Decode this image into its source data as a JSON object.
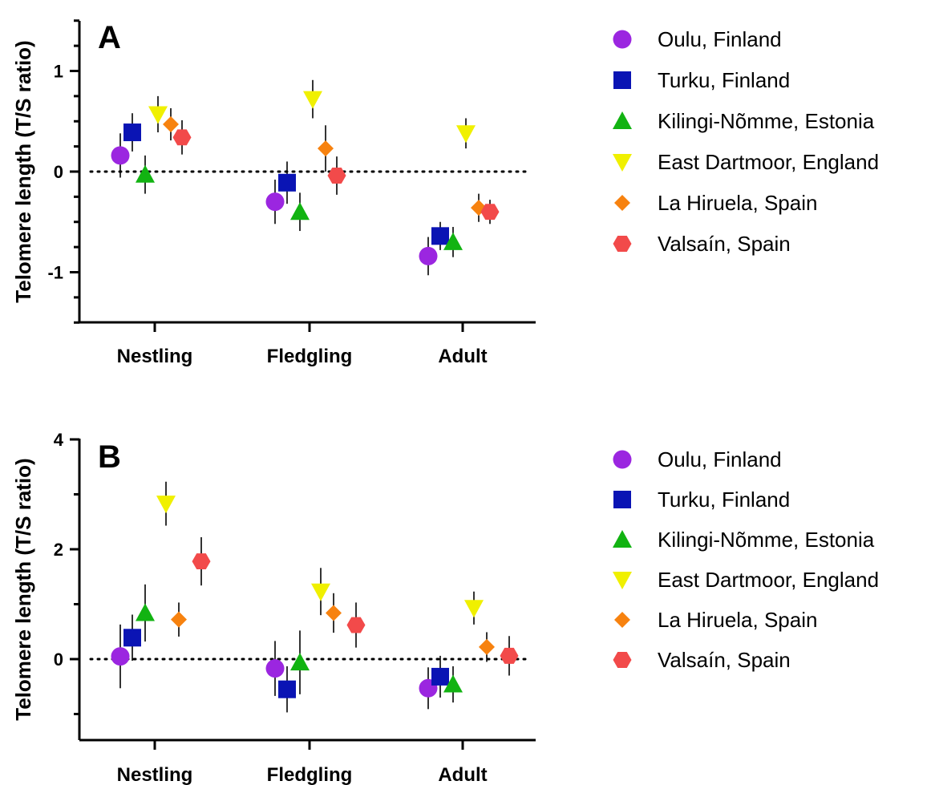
{
  "chart_data": [
    {
      "type": "scatter",
      "panel": "A",
      "ylabel": "Telomere length (T/S ratio)",
      "ylim": [
        -1.5,
        1.5
      ],
      "yticks_major": [
        -1,
        0,
        1
      ],
      "yticks_minor": [
        -1.5,
        -1.25,
        -0.75,
        -0.5,
        -0.25,
        0.25,
        0.5,
        0.75,
        1.25,
        1.5
      ],
      "reference_line": 0,
      "categories": [
        "Nestling",
        "Fledgling",
        "Adult"
      ],
      "series": [
        {
          "name": "Oulu, Finland",
          "color": "#9b26e0",
          "marker": "circle",
          "values": [
            0.16,
            -0.3,
            -0.84
          ],
          "errors": [
            0.22,
            0.22,
            0.19
          ]
        },
        {
          "name": "Turku, Finland",
          "color": "#0a14b4",
          "marker": "square",
          "values": [
            0.39,
            -0.11,
            -0.64
          ],
          "errors": [
            0.19,
            0.21,
            0.14
          ]
        },
        {
          "name": "Kilingi-Nõmme, Estonia",
          "color": "#12b312",
          "marker": "triangle-up",
          "values": [
            -0.03,
            -0.4,
            -0.7
          ],
          "errors": [
            0.19,
            0.19,
            0.15
          ]
        },
        {
          "name": "East Dartmoor, England",
          "color": "#f0f000",
          "marker": "triangle-down",
          "values": [
            0.57,
            0.72,
            0.38
          ],
          "errors": [
            0.18,
            0.19,
            0.15
          ]
        },
        {
          "name": "La Hiruela, Spain",
          "color": "#f7820f",
          "marker": "diamond",
          "values": [
            0.47,
            0.23,
            -0.36
          ],
          "errors": [
            0.16,
            0.23,
            0.14
          ]
        },
        {
          "name": "Valsaín, Spain",
          "color": "#f24a4a",
          "marker": "hexagon",
          "values": [
            0.34,
            -0.04,
            -0.4
          ],
          "errors": [
            0.17,
            0.19,
            0.12
          ]
        }
      ]
    },
    {
      "type": "scatter",
      "panel": "B",
      "ylabel": "Telomere length (T/S ratio)",
      "ylim": [
        -1.5,
        4
      ],
      "yticks_major": [
        0,
        2,
        4
      ],
      "yticks_minor": [
        -1,
        1,
        3
      ],
      "reference_line": 0,
      "categories": [
        "Nestling",
        "Fledgling",
        "Adult"
      ],
      "series": [
        {
          "name": "Oulu, Finland",
          "color": "#9b26e0",
          "marker": "circle",
          "values": [
            0.05,
            -0.17,
            -0.53
          ],
          "errors": [
            0.58,
            0.5,
            0.38
          ]
        },
        {
          "name": "Turku, Finland",
          "color": "#0a14b4",
          "marker": "square",
          "values": [
            0.39,
            -0.55,
            -0.32
          ],
          "errors": [
            0.42,
            0.42,
            0.38
          ]
        },
        {
          "name": "Kilingi-Nõmme, Estonia",
          "color": "#12b312",
          "marker": "triangle-up",
          "values": [
            0.84,
            -0.06,
            -0.46
          ],
          "errors": [
            0.52,
            0.58,
            0.33
          ]
        },
        {
          "name": "East Dartmoor, England",
          "color": "#f0f000",
          "marker": "triangle-down",
          "values": [
            2.83,
            1.23,
            0.93
          ],
          "errors": [
            0.4,
            0.43,
            0.3
          ]
        },
        {
          "name": "La Hiruela, Spain",
          "color": "#f7820f",
          "marker": "diamond",
          "values": [
            0.72,
            0.84,
            0.22
          ],
          "errors": [
            0.31,
            0.36,
            0.27
          ]
        },
        {
          "name": "Valsaín, Spain",
          "color": "#f24a4a",
          "marker": "hexagon",
          "values": [
            1.78,
            0.62,
            0.06
          ],
          "errors": [
            0.44,
            0.41,
            0.36
          ]
        }
      ]
    }
  ]
}
